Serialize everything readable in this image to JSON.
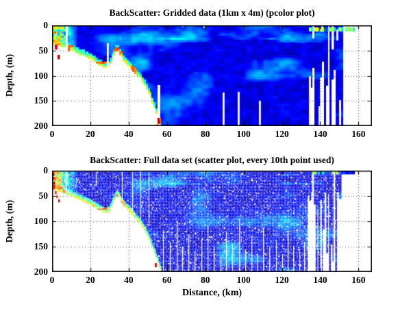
{
  "figure": {
    "background": "#ffffff",
    "axis_color": "#000000",
    "grid_style": "dotted"
  },
  "chart_data": [
    {
      "type": "pcolor",
      "title": "BackScatter: Gridded data (1km x 4m) (pcolor plot)",
      "xlabel": "",
      "ylabel": "Depth, (m)",
      "xlim": [
        0,
        167
      ],
      "ylim": [
        0,
        200
      ],
      "y_reversed": true,
      "xticks": [
        0,
        20,
        40,
        60,
        80,
        100,
        120,
        140,
        160
      ],
      "yticks": [
        0,
        50,
        100,
        150,
        200
      ],
      "grid": "on",
      "colormap": "jet",
      "cell_km": 1,
      "cell_m": 4,
      "seafloor_profile": [
        [
          0,
          36
        ],
        [
          3,
          41
        ],
        [
          6,
          45
        ],
        [
          9,
          48
        ],
        [
          12,
          54
        ],
        [
          15,
          59
        ],
        [
          18,
          64
        ],
        [
          21,
          70
        ],
        [
          24,
          77
        ],
        [
          26,
          81
        ],
        [
          28,
          85
        ],
        [
          30,
          82
        ],
        [
          31,
          72
        ],
        [
          33,
          56
        ],
        [
          34,
          50
        ],
        [
          35,
          54
        ],
        [
          36,
          62
        ],
        [
          38,
          73
        ],
        [
          40,
          80
        ],
        [
          42,
          88
        ],
        [
          44,
          97
        ],
        [
          46,
          106
        ],
        [
          48,
          117
        ],
        [
          50,
          131
        ],
        [
          52,
          149
        ],
        [
          54,
          169
        ],
        [
          55,
          180
        ],
        [
          56,
          191
        ],
        [
          57,
          200
        ]
      ],
      "full_depth_from_km": 57,
      "stripe_zone_km": [
        134,
        151.5
      ],
      "data_right_edge_km": 151.5,
      "surface_band": {
        "x": [
          134,
          157.5
        ],
        "depth": [
          4,
          12
        ]
      },
      "gaps": [
        [
          7.2,
          0,
          50,
          1
        ],
        [
          28.5,
          36,
          86,
          1
        ],
        [
          55,
          118,
          188,
          1.4
        ],
        [
          89,
          134,
          200,
          1
        ],
        [
          97,
          132,
          200,
          1
        ],
        [
          108,
          150,
          200,
          1
        ],
        [
          79,
          0,
          5,
          0.7
        ],
        [
          68,
          0,
          4,
          0.5
        ],
        [
          136,
          0,
          26,
          1
        ],
        [
          140.5,
          0,
          13,
          1
        ],
        [
          145.8,
          0,
          48,
          1.2
        ],
        [
          148.5,
          8,
          30,
          1
        ]
      ],
      "hotspots": [
        {
          "x": 1.6,
          "d": 38,
          "w": 1.4,
          "h": 10,
          "v": 0.9
        },
        {
          "x": 3.0,
          "d": 58,
          "w": 1.2,
          "h": 9,
          "v": 0.95
        },
        {
          "x": 8.3,
          "d": 44,
          "w": 1.2,
          "h": 8,
          "v": 0.78
        },
        {
          "x": 55.0,
          "d": 184,
          "w": 1.1,
          "h": 12,
          "v": 0.95
        },
        {
          "x": 54.4,
          "d": 196,
          "w": 1.0,
          "h": 5,
          "v": 0.72
        }
      ]
    },
    {
      "type": "scatter",
      "title": "BackScatter: Full data set (scatter plot, every 10th point used)",
      "xlabel": "Distance, (km)",
      "ylabel": "Depth, (m)",
      "xlim": [
        0,
        167
      ],
      "ylim": [
        0,
        200
      ],
      "y_reversed": true,
      "xticks": [
        0,
        20,
        40,
        60,
        80,
        100,
        120,
        140,
        160
      ],
      "yticks": [
        0,
        50,
        100,
        150,
        200
      ],
      "grid": "on",
      "colormap": "jet",
      "point_step": 10,
      "seafloor_profile": [
        [
          0,
          36
        ],
        [
          3,
          41
        ],
        [
          6,
          45
        ],
        [
          9,
          48
        ],
        [
          12,
          54
        ],
        [
          15,
          59
        ],
        [
          18,
          64
        ],
        [
          21,
          70
        ],
        [
          24,
          77
        ],
        [
          26,
          81
        ],
        [
          28,
          85
        ],
        [
          30,
          82
        ],
        [
          31,
          72
        ],
        [
          33,
          56
        ],
        [
          34,
          50
        ],
        [
          35,
          54
        ],
        [
          36,
          62
        ],
        [
          38,
          73
        ],
        [
          40,
          80
        ],
        [
          42,
          88
        ],
        [
          44,
          97
        ],
        [
          46,
          106
        ],
        [
          48,
          117
        ],
        [
          50,
          131
        ],
        [
          52,
          149
        ],
        [
          54,
          169
        ],
        [
          55,
          180
        ],
        [
          56,
          191
        ],
        [
          57,
          200
        ]
      ],
      "full_depth_from_km": 57,
      "stripe_zone_km": [
        133.5,
        151
      ],
      "data_right_edge_km": 151,
      "surface_band": {
        "x": [
          136,
          157.5
        ],
        "depth": [
          1,
          7
        ]
      },
      "speckle_fraction": 0.09,
      "gaps": [
        [
          7,
          0,
          45,
          0.5
        ],
        [
          23,
          5,
          30,
          0.4
        ],
        [
          36.5,
          3,
          60,
          0.4
        ],
        [
          42,
          3,
          80,
          0.4
        ],
        [
          46,
          3,
          95,
          0.4
        ],
        [
          50.5,
          3,
          110,
          0.4
        ]
      ],
      "gap_lines": [
        [
          58,
          118
        ],
        [
          61.5,
          140
        ],
        [
          65,
          100
        ],
        [
          68,
          150
        ],
        [
          71,
          125
        ],
        [
          74.5,
          160
        ],
        [
          78,
          135
        ],
        [
          81,
          108
        ],
        [
          84.5,
          150
        ],
        [
          88,
          170
        ],
        [
          91,
          120
        ],
        [
          94,
          145
        ],
        [
          97.5,
          95
        ],
        [
          101,
          155
        ],
        [
          104,
          130
        ],
        [
          107,
          165
        ],
        [
          110,
          112
        ],
        [
          113.5,
          150
        ],
        [
          117,
          138
        ],
        [
          120,
          165
        ],
        [
          123,
          118
        ],
        [
          126,
          148
        ],
        [
          129,
          160
        ],
        [
          131.5,
          140
        ]
      ],
      "hotspots": [
        {
          "x": 0.5,
          "d": 5,
          "w": 0.8,
          "h": 5,
          "v": 0.95
        },
        {
          "x": 0.5,
          "d": 14,
          "w": 0.8,
          "h": 5,
          "v": 0.9
        },
        {
          "x": 0.6,
          "d": 22,
          "w": 0.8,
          "h": 5,
          "v": 0.95
        },
        {
          "x": 0.8,
          "d": 30,
          "w": 0.8,
          "h": 5,
          "v": 0.88
        },
        {
          "x": 1.6,
          "d": 40,
          "w": 0.9,
          "h": 6,
          "v": 0.85
        },
        {
          "x": 2.3,
          "d": 48,
          "w": 0.9,
          "h": 6,
          "v": 0.8
        },
        {
          "x": 3.1,
          "d": 57,
          "w": 0.9,
          "h": 6,
          "v": 0.9
        },
        {
          "x": 53.5,
          "d": 182,
          "w": 1.0,
          "h": 8,
          "v": 0.92
        }
      ]
    }
  ]
}
